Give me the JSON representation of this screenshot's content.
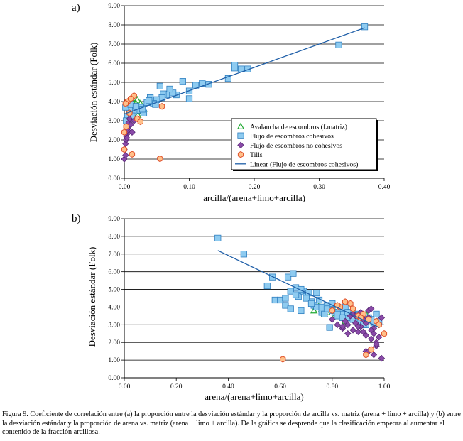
{
  "figure": {
    "caption": "Figura 9. Coeficiente de correlación entre (a) la proporción entre la desviación estándar y la proporción de arcilla vs. matriz (arena + limo + arcilla) y (b) entre la desviación estándar y la proporción de arena vs. matriz (arena + limo + arcilla). De la gráfica se desprende que la clasificación empeora al aumentar el contenido de la fracción arcillosa."
  },
  "colors": {
    "avalancha": "#22aa33",
    "cohesivos_fill": "#8ecbf0",
    "cohesivos_stroke": "#2f7fc0",
    "no_cohesivos_fill": "#8a4aa8",
    "no_cohesivos_stroke": "#5a2a78",
    "tills_fill": "#ffc08a",
    "tills_stroke": "#e0502a",
    "trend": "#1f5fa8"
  },
  "chart_data": [
    {
      "panel_label": "a)",
      "type": "scatter",
      "xlabel": "arcilla/(arena+limo+arcilla)",
      "ylabel": "Desviación estándar (Folk)",
      "xlim": [
        0,
        0.4
      ],
      "ylim": [
        0,
        9
      ],
      "x_ticks": [
        0,
        0.1,
        0.2,
        0.3,
        0.4
      ],
      "x_tick_labels": [
        "0.00",
        "0.10",
        "0.20",
        "0.30",
        "0.40"
      ],
      "y_ticks": [
        0,
        1,
        2,
        3,
        4,
        5,
        6,
        7,
        8,
        9
      ],
      "y_tick_labels": [
        "0.00",
        "1.00",
        "2.00",
        "3.00",
        "4.00",
        "5.00",
        "6.00",
        "7.00",
        "8.00",
        "9.00"
      ],
      "grid": "horizontal",
      "legend": {
        "position": "right-middle",
        "entries": [
          {
            "key": "avalancha",
            "label": "Avalancha de escombros (f.matriz)"
          },
          {
            "key": "cohesivos",
            "label": "Flujo de escombros cohesivos"
          },
          {
            "key": "no_cohesivos",
            "label": "Flujo de escombros no cohesivos"
          },
          {
            "key": "tills",
            "label": "Tills"
          },
          {
            "key": "trend",
            "label": "Linear (Flujo de escombros cohesivos)"
          }
        ]
      },
      "trendline": {
        "label": "Linear (Flujo de escombros cohesivos)",
        "x": [
          0,
          0.37
        ],
        "y": [
          3.35,
          7.85
        ]
      },
      "series": [
        {
          "key": "avalancha",
          "name": "Avalancha de escombros (f.matriz)",
          "marker": "triangle",
          "x": [
            0.005,
            0.008,
            0.01,
            0.012,
            0.014,
            0.016,
            0.018,
            0.02,
            0.022,
            0.006,
            0.009,
            0.011,
            0.013,
            0.015,
            0.017,
            0.019,
            0.021,
            0.007,
            0.012,
            0.016,
            0.02,
            0.025,
            0.03,
            0.004,
            0.01,
            0.014,
            0.018,
            0.023
          ],
          "y": [
            3.2,
            3.5,
            3.9,
            3.4,
            4.0,
            3.7,
            3.2,
            4.1,
            3.6,
            3.0,
            3.8,
            3.3,
            3.6,
            3.9,
            3.4,
            3.8,
            3.3,
            3.5,
            3.1,
            3.5,
            3.7,
            3.9,
            3.6,
            2.8,
            4.1,
            3.7,
            3.9,
            3.5
          ]
        },
        {
          "key": "cohesivos",
          "name": "Flujo de escombros cohesivos",
          "marker": "square",
          "x": [
            0.37,
            0.33,
            0.19,
            0.18,
            0.17,
            0.17,
            0.16,
            0.13,
            0.12,
            0.11,
            0.1,
            0.1,
            0.09,
            0.08,
            0.075,
            0.07,
            0.065,
            0.06,
            0.058,
            0.055,
            0.05,
            0.045,
            0.04,
            0.035,
            0.03,
            0.025,
            0.02,
            0.015,
            0.012,
            0.008,
            0.005,
            0.003,
            0.002,
            0.01,
            0.018,
            0.028,
            0.038,
            0.048
          ],
          "y": [
            7.9,
            6.95,
            5.7,
            5.7,
            5.9,
            5.75,
            5.2,
            4.9,
            4.95,
            4.85,
            4.55,
            4.15,
            5.05,
            4.35,
            4.45,
            4.65,
            4.35,
            4.4,
            4.2,
            4.8,
            4.1,
            3.9,
            4.2,
            3.95,
            3.4,
            3.7,
            3.55,
            3.5,
            3.25,
            3.6,
            3.2,
            3.0,
            3.7,
            3.85,
            3.75,
            3.6,
            4.05,
            3.85
          ]
        },
        {
          "key": "no_cohesivos",
          "name": "Flujo de escombros no cohesivos",
          "marker": "diamond",
          "x": [
            0.0,
            0.0,
            0.002,
            0.003,
            0.004,
            0.005,
            0.006,
            0.007,
            0.008,
            0.003,
            0.005,
            0.01,
            0.012,
            0.015,
            0.002,
            0.004
          ],
          "y": [
            1.0,
            1.5,
            1.8,
            2.0,
            2.3,
            2.5,
            2.7,
            2.9,
            3.1,
            2.2,
            2.6,
            2.8,
            2.4,
            3.0,
            1.2,
            2.1
          ]
        },
        {
          "key": "tills",
          "name": "Tills",
          "marker": "hexagon",
          "x": [
            0.055,
            0.012,
            0.0,
            0.0,
            0.003,
            0.008,
            0.02,
            0.058,
            0.025,
            0.005,
            0.015,
            0.002,
            0.01
          ],
          "y": [
            1.02,
            1.25,
            1.5,
            2.4,
            2.7,
            3.4,
            3.1,
            3.75,
            2.95,
            4.0,
            4.3,
            3.9,
            4.15
          ]
        }
      ]
    },
    {
      "panel_label": "b)",
      "type": "scatter",
      "xlabel": "arena/(arena+limo+arcilla)",
      "ylabel": "Desviación estándar (Folk)",
      "xlim": [
        0,
        1
      ],
      "ylim": [
        0,
        9
      ],
      "x_ticks": [
        0,
        0.2,
        0.4,
        0.6,
        0.8,
        1.0
      ],
      "x_tick_labels": [
        "0.00",
        "0.20",
        "0.40",
        "0.60",
        "0.80",
        "1.00"
      ],
      "y_ticks": [
        0,
        1,
        2,
        3,
        4,
        5,
        6,
        7,
        8,
        9
      ],
      "y_tick_labels": [
        "0.00",
        "1.00",
        "2.00",
        "3.00",
        "4.00",
        "5.00",
        "6.00",
        "7.00",
        "8.00",
        "9.00"
      ],
      "grid": "horizontal",
      "trendline": {
        "label": "Linear (Flujo de escombros cohesivos)",
        "x": [
          0.36,
          0.98
        ],
        "y": [
          7.2,
          2.85
        ]
      },
      "series": [
        {
          "key": "avalancha",
          "name": "Avalancha de escombros (f.matriz)",
          "marker": "triangle",
          "x": [
            0.73,
            0.75,
            0.77,
            0.79,
            0.81,
            0.83,
            0.85,
            0.87,
            0.89,
            0.76,
            0.8,
            0.84,
            0.88,
            0.9,
            0.78,
            0.82,
            0.86,
            0.91,
            0.74,
            0.93
          ],
          "y": [
            3.8,
            4.1,
            3.6,
            4.0,
            3.5,
            3.9,
            3.2,
            3.6,
            3.3,
            3.9,
            4.2,
            3.4,
            3.8,
            3.1,
            3.7,
            4.0,
            3.5,
            3.3,
            4.0,
            3.6
          ]
        },
        {
          "key": "cohesivos",
          "name": "Flujo de escombros cohesivos",
          "marker": "square",
          "x": [
            0.36,
            0.46,
            0.55,
            0.57,
            0.58,
            0.6,
            0.62,
            0.63,
            0.64,
            0.65,
            0.66,
            0.67,
            0.68,
            0.69,
            0.7,
            0.71,
            0.72,
            0.73,
            0.74,
            0.75,
            0.76,
            0.77,
            0.78,
            0.79,
            0.8,
            0.81,
            0.82,
            0.83,
            0.84,
            0.85,
            0.86,
            0.87,
            0.88,
            0.89,
            0.9,
            0.91,
            0.92,
            0.93,
            0.94,
            0.95,
            0.96,
            0.97,
            0.98,
            0.62,
            0.64,
            0.66,
            0.68,
            0.7,
            0.72,
            0.74,
            0.76,
            0.78,
            0.8,
            0.82,
            0.84,
            0.86,
            0.88,
            0.9,
            0.92
          ],
          "y": [
            7.9,
            7.0,
            5.2,
            5.7,
            4.4,
            4.4,
            4.1,
            5.7,
            3.9,
            5.9,
            5.1,
            4.6,
            3.8,
            4.9,
            4.6,
            4.8,
            4.3,
            4.1,
            4.0,
            4.4,
            3.7,
            3.6,
            4.1,
            2.85,
            4.2,
            3.7,
            3.5,
            3.8,
            3.6,
            4.0,
            3.4,
            3.7,
            3.5,
            3.3,
            3.6,
            3.2,
            3.5,
            3.0,
            3.4,
            3.3,
            3.1,
            3.6,
            3.2,
            4.5,
            4.9,
            4.7,
            5.0,
            4.5,
            4.2,
            4.8,
            4.0,
            3.9,
            3.8,
            3.6,
            3.4,
            3.7,
            3.3,
            3.5,
            3.0
          ]
        },
        {
          "key": "no_cohesivos",
          "name": "Flujo de escombros no cohesivos",
          "marker": "diamond",
          "x": [
            0.8,
            0.82,
            0.84,
            0.85,
            0.86,
            0.87,
            0.88,
            0.89,
            0.9,
            0.91,
            0.92,
            0.93,
            0.94,
            0.95,
            0.96,
            0.97,
            0.98,
            0.99,
            0.93,
            0.95,
            0.96,
            0.97,
            0.94,
            0.9,
            0.92,
            0.88,
            0.86,
            0.98,
            0.99,
            0.96,
            0.95,
            0.97,
            0.91,
            0.93,
            0.95,
            0.84,
            0.89,
            0.94
          ],
          "y": [
            3.3,
            3.0,
            2.8,
            3.2,
            2.5,
            3.5,
            2.7,
            3.1,
            2.6,
            2.9,
            3.3,
            2.4,
            3.8,
            2.2,
            2.8,
            2.0,
            3.0,
            1.1,
            1.5,
            1.6,
            2.5,
            1.8,
            3.4,
            2.9,
            2.6,
            3.6,
            3.0,
            2.3,
            3.4,
            1.3,
            3.9,
            1.9,
            3.7,
            3.1,
            2.7,
            2.9,
            3.5,
            1.5
          ]
        },
        {
          "key": "tills",
          "name": "Tills",
          "marker": "hexagon",
          "x": [
            0.61,
            0.93,
            1.0,
            0.95,
            0.97,
            0.9,
            0.85,
            0.83,
            0.8,
            0.87,
            0.92,
            0.94,
            0.98,
            0.82,
            0.88,
            0.91
          ],
          "y": [
            1.05,
            1.3,
            2.5,
            1.6,
            3.2,
            3.5,
            4.3,
            4.0,
            3.8,
            4.2,
            3.6,
            3.3,
            3.0,
            4.1,
            3.9,
            3.4
          ]
        }
      ]
    }
  ]
}
